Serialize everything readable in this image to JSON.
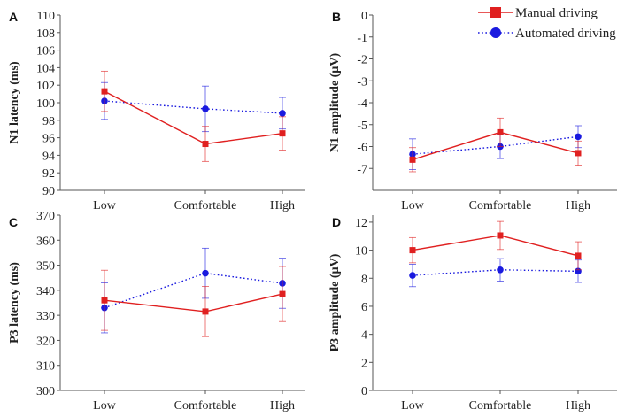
{
  "colors": {
    "manual": "#e02020",
    "automated": "#1a1adf",
    "axis": "#555555"
  },
  "legend": {
    "placement": "top-right",
    "items": [
      {
        "series_key": "manual",
        "label": "Manual driving",
        "marker": "square",
        "line": "solid"
      },
      {
        "series_key": "automated",
        "label": "Automated driving",
        "marker": "circle",
        "line": "dotted"
      }
    ]
  },
  "chart_data": [
    {
      "panel": "A",
      "type": "line",
      "ylabel": "N1 latency (ms)",
      "categories": [
        "Low",
        "Comfortable",
        "High"
      ],
      "ylim": [
        90,
        110
      ],
      "yticks": [
        90,
        92,
        94,
        96,
        98,
        100,
        102,
        104,
        106,
        108,
        110
      ],
      "series": [
        {
          "key": "manual",
          "name": "Manual driving",
          "values": [
            101.3,
            95.3,
            96.5
          ],
          "err": [
            2.3,
            2.0,
            1.9
          ]
        },
        {
          "key": "automated",
          "name": "Automated driving",
          "values": [
            100.2,
            99.3,
            98.8
          ],
          "err": [
            2.1,
            2.6,
            1.8
          ]
        }
      ]
    },
    {
      "panel": "B",
      "type": "line",
      "ylabel": "N1 amplitude (µV)",
      "categories": [
        "Low",
        "Comfortable",
        "High"
      ],
      "ylim": [
        -8,
        0
      ],
      "yticks": [
        -7,
        -6,
        -5,
        -4,
        -3,
        -2,
        -1,
        0
      ],
      "series": [
        {
          "key": "manual",
          "name": "Manual driving",
          "values": [
            -6.6,
            -5.35,
            -6.3
          ],
          "err": [
            0.55,
            0.65,
            0.55
          ]
        },
        {
          "key": "automated",
          "name": "Automated driving",
          "values": [
            -6.35,
            -6.0,
            -5.55
          ],
          "err": [
            0.7,
            0.55,
            0.5
          ]
        }
      ]
    },
    {
      "panel": "C",
      "type": "line",
      "ylabel": "P3 latency (ms)",
      "categories": [
        "Low",
        "Comfortable",
        "High"
      ],
      "ylim": [
        300,
        370
      ],
      "yticks": [
        300,
        310,
        320,
        330,
        340,
        350,
        360,
        370
      ],
      "series": [
        {
          "key": "manual",
          "name": "Manual driving",
          "values": [
            336,
            331.5,
            338.5
          ],
          "err": [
            12,
            10,
            11
          ]
        },
        {
          "key": "automated",
          "name": "Automated driving",
          "values": [
            333,
            346.8,
            342.8
          ],
          "err": [
            10,
            10,
            10
          ]
        }
      ]
    },
    {
      "panel": "D",
      "type": "line",
      "ylabel": "P3 amplitude (µV)",
      "categories": [
        "Low",
        "Comfortable",
        "High"
      ],
      "ylim": [
        0,
        12.5
      ],
      "yticks": [
        0,
        2,
        4,
        6,
        8,
        10,
        12
      ],
      "series": [
        {
          "key": "manual",
          "name": "Manual driving",
          "values": [
            10.0,
            11.05,
            9.6
          ],
          "err": [
            0.9,
            1.0,
            1.0
          ]
        },
        {
          "key": "automated",
          "name": "Automated driving",
          "values": [
            8.2,
            8.6,
            8.5
          ],
          "err": [
            0.8,
            0.8,
            0.8
          ]
        }
      ]
    }
  ]
}
